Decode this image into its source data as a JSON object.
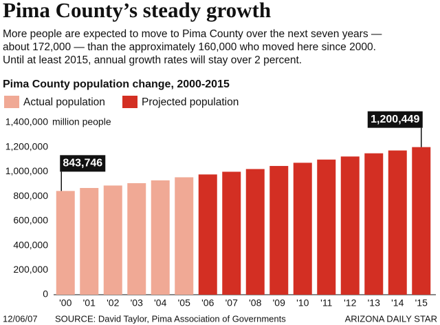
{
  "chart_data": {
    "type": "bar",
    "title": "Pima County’s steady growth",
    "subtitle": [
      "More people are expected to move to Pima County over the next seven years —",
      "about 172,000 — than the approximately 160,000 who moved here since 2000.",
      "Until at least 2015, annual growth rates will stay over 2 percent."
    ],
    "chart_title": "Pima County population change, 2000-2015",
    "y_unit_label": "million people",
    "categories": [
      "'00",
      "'01",
      "'02",
      "'03",
      "'04",
      "'05",
      "'06",
      "'07",
      "'08",
      "'09",
      "'10",
      "'11",
      "'12",
      "'13",
      "'14",
      "'15"
    ],
    "series": [
      {
        "name": "Actual population",
        "color": "#f0a995",
        "values": [
          843746,
          868000,
          888000,
          907000,
          930000,
          955000,
          null,
          null,
          null,
          null,
          null,
          null,
          null,
          null,
          null,
          null
        ],
        "value_labels": [
          "843,746",
          null,
          null,
          null,
          null,
          null,
          null,
          null,
          null,
          null,
          null,
          null,
          null,
          null,
          null,
          null
        ]
      },
      {
        "name": "Projected population",
        "color": "#d32f23",
        "values": [
          null,
          null,
          null,
          null,
          null,
          null,
          978000,
          1000000,
          1022000,
          1047000,
          1073000,
          1099000,
          1124000,
          1150000,
          1173000,
          1200449
        ],
        "value_labels": [
          null,
          null,
          null,
          null,
          null,
          null,
          null,
          null,
          null,
          null,
          null,
          null,
          null,
          null,
          null,
          "1,200,449"
        ]
      }
    ],
    "ylim": [
      0,
      1400000
    ],
    "yticks": [
      0,
      {
        "value": 200000,
        "label": "200,000"
      },
      {
        "value": 400000,
        "label": "400,000"
      },
      {
        "value": 600000,
        "label": "600,000"
      },
      {
        "value": 800000,
        "label": "800,000"
      },
      {
        "value": 1000000,
        "label": "1,000,000"
      },
      {
        "value": 1200000,
        "label": "1,200,000"
      },
      {
        "value": 1400000,
        "label": "1,400,000"
      }
    ],
    "footer": {
      "date": "12/06/07",
      "source": "SOURCE: David Taylor, Pima Association of Governments",
      "credit": "ARIZONA DAILY STAR"
    }
  }
}
